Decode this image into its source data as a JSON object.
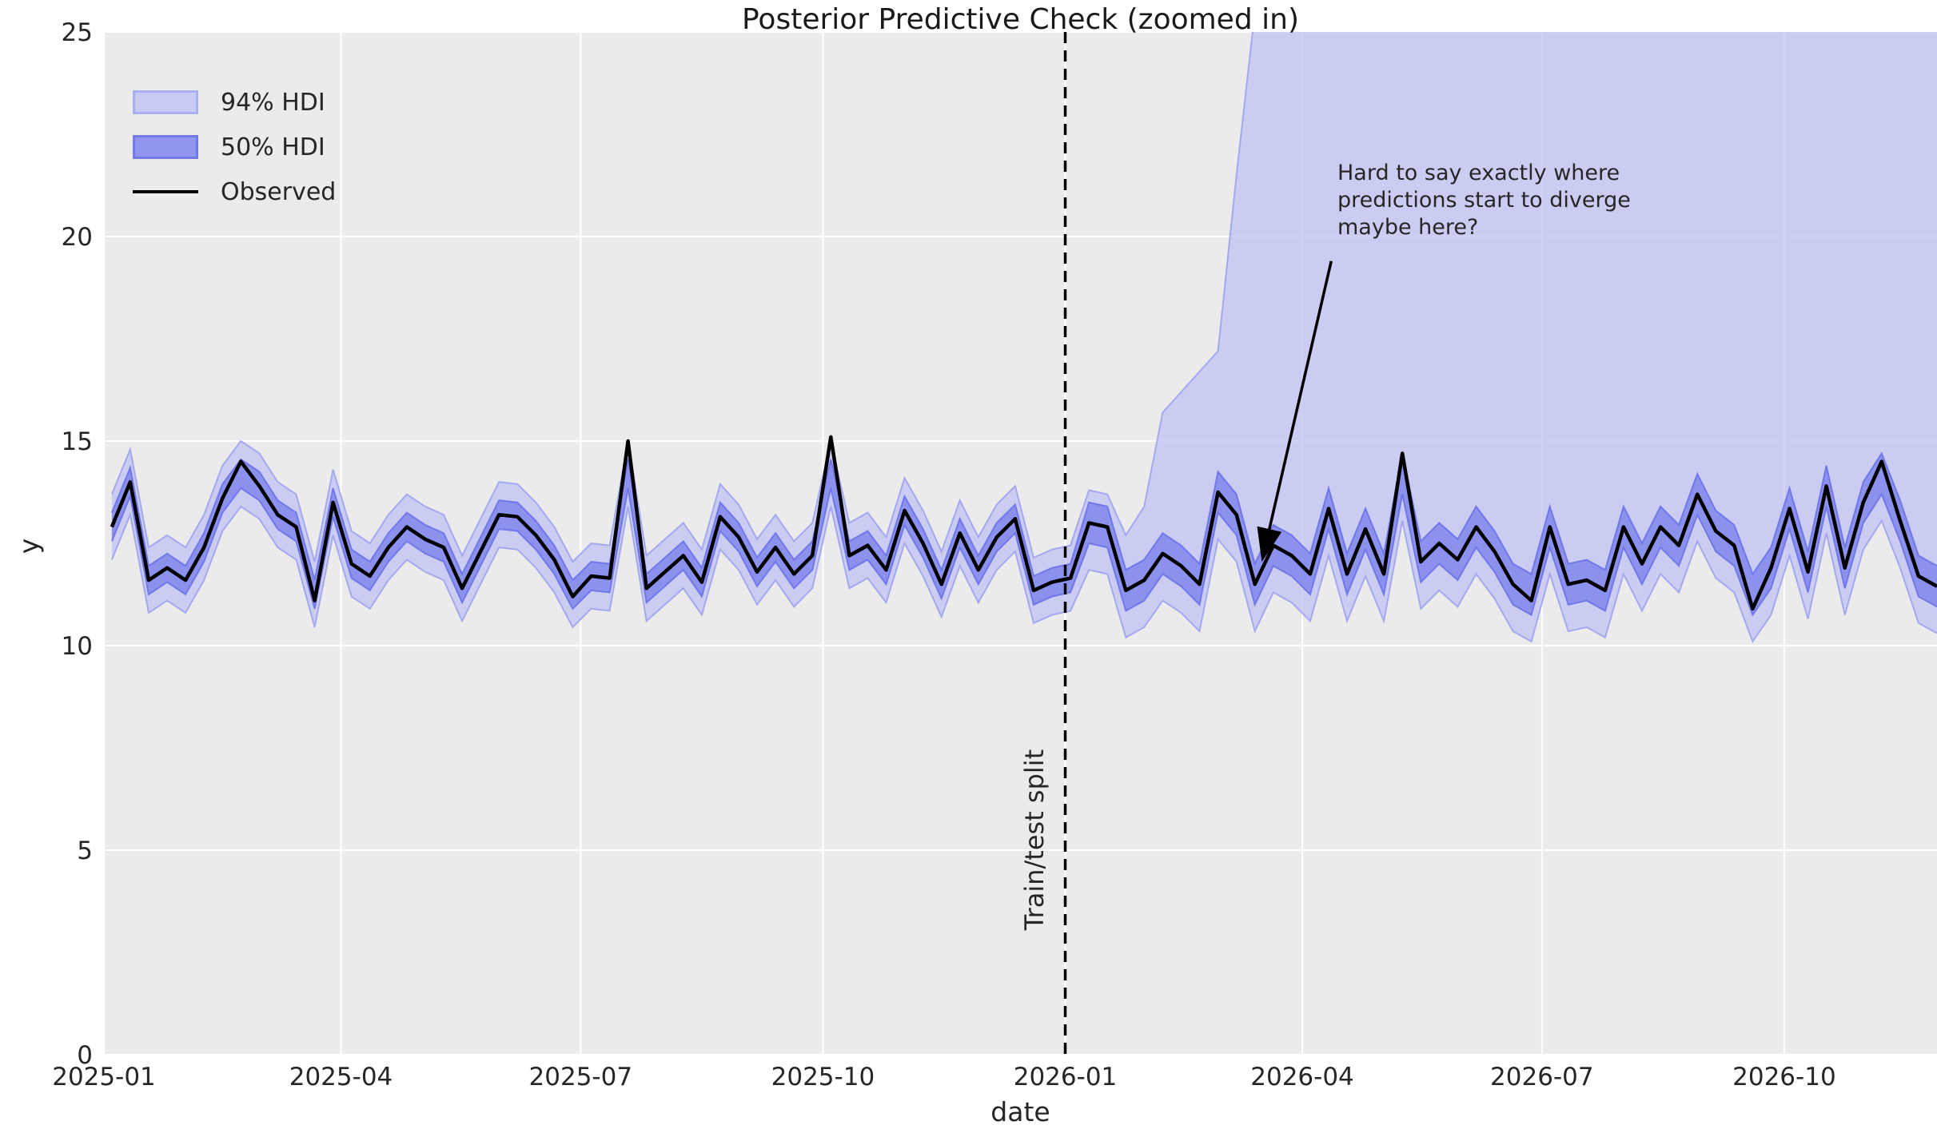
{
  "figure": {
    "title": "Posterior Predictive Check (zoomed in)",
    "background_color": "#ffffff",
    "axes_background_color": "#ebebeb",
    "gridline_color": "#ffffff",
    "text_color": "#262626"
  },
  "legend": {
    "entries": [
      {
        "label": "94% HDI",
        "type": "patch",
        "fill": "#c7caf2",
        "edge": "#a9aef1"
      },
      {
        "label": "50% HDI",
        "type": "patch",
        "fill": "#9096ed",
        "edge": "#7179e9"
      },
      {
        "label": "Observed",
        "type": "line",
        "color": "#000000"
      }
    ]
  },
  "annotation": {
    "text": "Hard to say exactly where\npredictions start to diverge\nmaybe here?",
    "arrow_from": [
      "2026-04-12",
      19.4
    ],
    "arrow_to": [
      "2026-03-17",
      12.15
    ]
  },
  "split": {
    "label": "Train/test split",
    "date": "2026-01-01"
  },
  "chart_data": {
    "type": "line",
    "title": "Posterior Predictive Check (zoomed in)",
    "xlabel": "date",
    "ylabel": "y",
    "ylim": [
      0,
      25
    ],
    "x_axis_start": "2025-01-01",
    "x_axis_end": "2026-11-28",
    "x_tick_labels": [
      "2025-01",
      "2025-04",
      "2025-07",
      "2025-10",
      "2026-01",
      "2026-04",
      "2026-07",
      "2026-10"
    ],
    "x_tick_dates": [
      "2025-01-01",
      "2025-04-01",
      "2025-07-01",
      "2025-10-01",
      "2026-01-01",
      "2026-04-01",
      "2026-07-01",
      "2026-10-01"
    ],
    "y_ticks": [
      0,
      5,
      10,
      15,
      20,
      25
    ],
    "grid": true,
    "legend_position": "upper left",
    "series_start_date": "2025-01-04",
    "series_interval_days": 7,
    "observed": [
      12.9,
      14.0,
      11.6,
      11.9,
      11.6,
      12.4,
      13.6,
      14.5,
      13.9,
      13.2,
      12.9,
      11.1,
      13.5,
      12.0,
      11.7,
      12.4,
      12.9,
      12.6,
      12.4,
      11.4,
      12.3,
      13.2,
      13.15,
      12.7,
      12.1,
      11.2,
      11.7,
      11.65,
      15.0,
      11.4,
      11.8,
      12.2,
      11.55,
      13.15,
      12.65,
      11.8,
      12.4,
      11.75,
      12.2,
      15.1,
      12.2,
      12.45,
      11.85,
      13.3,
      12.5,
      11.5,
      12.75,
      11.85,
      12.65,
      13.1,
      11.35,
      11.55,
      11.65,
      13.0,
      12.9,
      11.35,
      11.6,
      12.25,
      11.95,
      11.5,
      13.75,
      13.2,
      11.5,
      12.45,
      12.2,
      11.75,
      13.35,
      11.75,
      12.85,
      11.75,
      14.7,
      12.05,
      12.5,
      12.1,
      12.9,
      12.3,
      11.5,
      11.1,
      12.9,
      11.5,
      11.6,
      11.35,
      12.9,
      12.0,
      12.9,
      12.45,
      13.7,
      12.8,
      12.45,
      10.9,
      11.9,
      13.35,
      11.8,
      13.9,
      11.9,
      13.5,
      14.5,
      13.05,
      11.7,
      11.45
    ],
    "hdi_bands": {
      "train_last_index": 52,
      "center_clip": [
        11.25,
        14.2
      ],
      "pre_split": {
        "hdi50_halfwidth": 0.35,
        "hdi94_halfwidth": 0.8
      },
      "post_split": {
        "hdi50_halfwidth": 0.5,
        "hdi94_lower_offset": 1.15,
        "hdi94_upper_offset": 0.9
      },
      "hdi94_upper_divergence": {
        "53": 13.8,
        "54": 13.7,
        "55": 12.7,
        "56": 13.4,
        "57": 15.7,
        "58": 16.2,
        "59": 16.7,
        "60": 17.2,
        "61": 21.5,
        "62": 25.5
      },
      "hdi94_upper_offchart_value": 28
    },
    "colors": {
      "hdi94_fill": "#bcc0f2",
      "hdi94_edge": "#9aa0ef",
      "hdi50_fill": "#858cec",
      "hdi50_edge": "#6b72e8",
      "observed_line": "#000000",
      "split_line": "#000000"
    }
  }
}
